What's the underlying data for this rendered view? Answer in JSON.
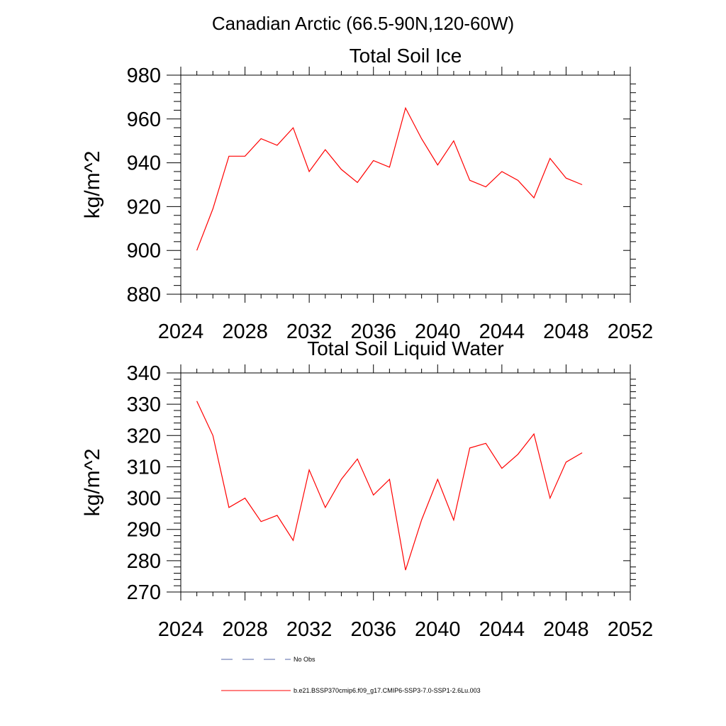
{
  "figure": {
    "title": "Canadian Arctic (66.5-90N,120-60W)"
  },
  "chart_data": [
    {
      "type": "line",
      "title": "Total Soil Ice",
      "xlabel": "",
      "ylabel": "kg/m^2",
      "xlim": [
        2024,
        2052
      ],
      "ylim": [
        880,
        980
      ],
      "xticks": [
        2024,
        2028,
        2032,
        2036,
        2040,
        2044,
        2048,
        2052
      ],
      "yticks": [
        880,
        900,
        920,
        940,
        960,
        980
      ],
      "grid": false,
      "series": [
        {
          "color": "#ff0000",
          "x": [
            2025,
            2026,
            2027,
            2028,
            2029,
            2030,
            2031,
            2032,
            2033,
            2034,
            2035,
            2036,
            2037,
            2038,
            2039,
            2040,
            2041,
            2042,
            2043,
            2044,
            2045,
            2046,
            2047,
            2048,
            2049
          ],
          "y": [
            900,
            919,
            943,
            943,
            951,
            948,
            956,
            936,
            946,
            937,
            931,
            941,
            938,
            965,
            951,
            939,
            950,
            932,
            929,
            936,
            932,
            924,
            942,
            933,
            930
          ]
        }
      ]
    },
    {
      "type": "line",
      "title": "Total Soil Liquid Water",
      "xlabel": "",
      "ylabel": "kg/m^2",
      "xlim": [
        2024,
        2052
      ],
      "ylim": [
        270,
        340
      ],
      "xticks": [
        2024,
        2028,
        2032,
        2036,
        2040,
        2044,
        2048,
        2052
      ],
      "yticks": [
        270,
        280,
        290,
        300,
        310,
        320,
        330,
        340
      ],
      "grid": false,
      "series": [
        {
          "color": "#ff0000",
          "x": [
            2025,
            2026,
            2027,
            2028,
            2029,
            2030,
            2031,
            2032,
            2033,
            2034,
            2035,
            2036,
            2037,
            2038,
            2039,
            2040,
            2041,
            2042,
            2043,
            2044,
            2045,
            2046,
            2047,
            2048,
            2049
          ],
          "y": [
            331,
            320,
            297,
            300,
            292.5,
            294.5,
            286.5,
            309,
            297,
            306,
            312.5,
            301,
            306,
            277,
            293,
            306,
            293,
            316,
            317.5,
            309.5,
            314,
            320.5,
            300,
            311.5,
            314.5
          ]
        }
      ]
    }
  ],
  "legend": {
    "placement": "bottom",
    "items": [
      {
        "label": "No Obs",
        "style": "dashed",
        "color": "#5566aa"
      },
      {
        "label": "b.e21.BSSP370cmip6.f09_g17.CMIP6-SSP3-7.0-SSP1-2.6Lu.003",
        "style": "solid",
        "color": "#ff0000"
      }
    ]
  }
}
